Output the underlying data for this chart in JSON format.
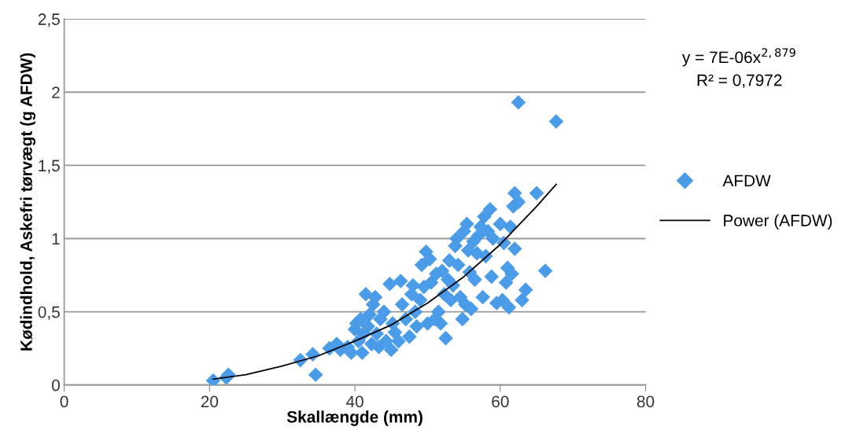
{
  "chart_data": {
    "type": "scatter",
    "xlabel": "Skallængde (mm)",
    "ylabel": "Kødindhold, Askefri tørvægt (g AFDW)",
    "xlim": [
      0,
      80
    ],
    "xticks": [
      0,
      20,
      40,
      60,
      80
    ],
    "ylim": [
      0,
      2.5
    ],
    "yticks": [
      0,
      {
        "value": 0.5,
        "label": "0,5"
      },
      1,
      {
        "value": 1.5,
        "label": "1,5"
      },
      2,
      {
        "value": 2.5,
        "label": "2,5"
      }
    ],
    "grid": "y",
    "legend": "right",
    "annotations": [
      "y = 7E-06x$^{2,879}$",
      "R² = 0,7972"
    ],
    "series": [
      {
        "name": "AFDW",
        "marker": "diamond",
        "color": "#4a9be8",
        "x": [
          20.5,
          22.3,
          22.6,
          32.5,
          34.2,
          34.6,
          36.5,
          37.5,
          38,
          39,
          39.5,
          40,
          40.2,
          40.5,
          40.8,
          41,
          41.2,
          41.5,
          41.8,
          42,
          42.3,
          42.5,
          42.8,
          43,
          43.3,
          43.5,
          44,
          44.3,
          44.8,
          45,
          45.2,
          45.5,
          46,
          46.3,
          46.5,
          47,
          47.5,
          47.8,
          48,
          48.3,
          48.5,
          49,
          49.2,
          49.5,
          49.8,
          50,
          50.3,
          50.5,
          51,
          51.2,
          51.5,
          51.8,
          52,
          52.3,
          52.5,
          52.8,
          53,
          53.2,
          53.5,
          53.8,
          54,
          54.2,
          54.5,
          54.8,
          55,
          55.2,
          55.4,
          55.6,
          55.8,
          56,
          56.3,
          56.5,
          56.8,
          57,
          57.3,
          57.6,
          57.8,
          58,
          58.3,
          58.6,
          58.8,
          59,
          59.5,
          60,
          60.3,
          60.5,
          60.8,
          61,
          61.2,
          61.4,
          61.6,
          61.8,
          62,
          62,
          62.5,
          62.5,
          63,
          63.5,
          65,
          66.2,
          67.7
        ],
        "values": [
          0.03,
          0.05,
          0.07,
          0.17,
          0.21,
          0.07,
          0.25,
          0.28,
          0.24,
          0.26,
          0.22,
          0.38,
          0.42,
          0.3,
          0.45,
          0.22,
          0.35,
          0.62,
          0.4,
          0.48,
          0.28,
          0.55,
          0.6,
          0.35,
          0.26,
          0.45,
          0.5,
          0.3,
          0.69,
          0.24,
          0.42,
          0.36,
          0.3,
          0.71,
          0.55,
          0.45,
          0.33,
          0.62,
          0.68,
          0.5,
          0.4,
          0.58,
          0.82,
          0.67,
          0.91,
          0.42,
          0.86,
          0.7,
          0.45,
          0.76,
          0.5,
          0.42,
          0.78,
          0.62,
          0.32,
          0.72,
          0.85,
          0.58,
          0.68,
          0.95,
          1.0,
          0.82,
          0.6,
          0.45,
          1.05,
          0.55,
          1.1,
          0.92,
          0.77,
          0.52,
          0.98,
          0.72,
          0.9,
          1.02,
          1.08,
          0.6,
          1.15,
          0.88,
          1.05,
          1.2,
          0.74,
          1.0,
          0.56,
          1.1,
          0.58,
          0.97,
          0.7,
          0.8,
          0.53,
          1.08,
          0.76,
          1.22,
          1.31,
          0.93,
          1.25,
          1.93,
          0.58,
          0.65,
          1.31,
          0.78,
          1.8
        ]
      },
      {
        "name": "Power (AFDW)",
        "type": "line",
        "marker": "none",
        "line_style": "solid",
        "color": "#000000",
        "x": [
          20.5,
          25,
          30,
          35,
          40,
          45,
          50,
          55,
          60,
          65,
          67.7
        ],
        "values": [
          0.04,
          0.07,
          0.13,
          0.2,
          0.3,
          0.41,
          0.56,
          0.74,
          0.96,
          1.22,
          1.37
        ]
      }
    ]
  }
}
